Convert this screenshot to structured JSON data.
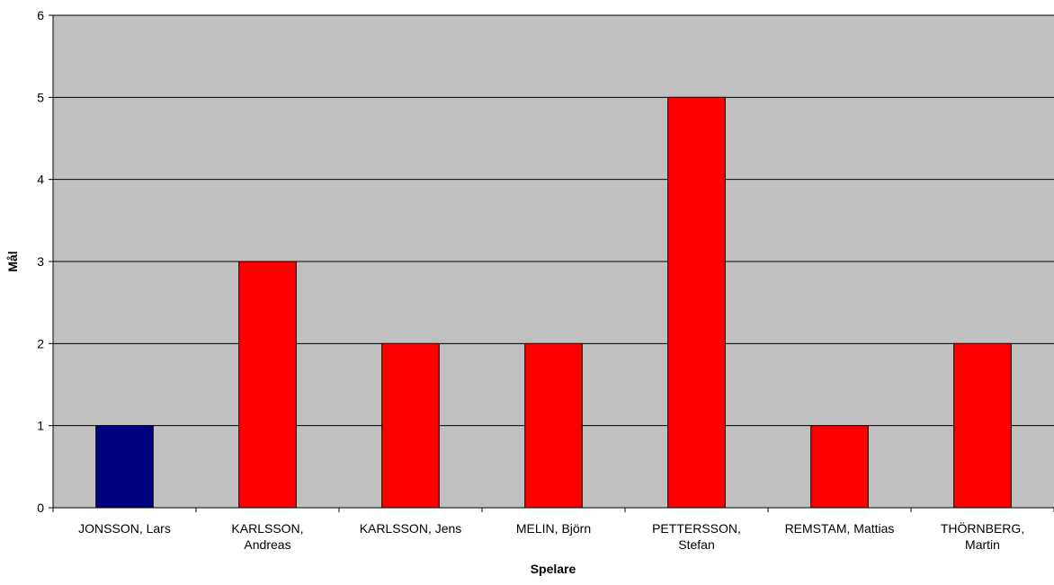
{
  "chart_data": {
    "type": "bar",
    "title": "",
    "xlabel": "Spelare",
    "ylabel": "Mål",
    "ylim": [
      0,
      6
    ],
    "yticks": [
      "0",
      "1",
      "2",
      "3",
      "4",
      "5",
      "6"
    ],
    "grid": true,
    "categories": [
      [
        "JONSSON, Lars"
      ],
      [
        "KARLSSON,",
        "Andreas"
      ],
      [
        "KARLSSON, Jens"
      ],
      [
        "MELIN, Björn"
      ],
      [
        "PETTERSSON,",
        "Stefan"
      ],
      [
        "REMSTAM, Mattias"
      ],
      [
        "THÖRNBERG,",
        "Martin"
      ]
    ],
    "values": [
      1,
      3,
      2,
      2,
      5,
      1,
      2
    ],
    "bar_colors": [
      "#000080",
      "#ff0000",
      "#ff0000",
      "#ff0000",
      "#ff0000",
      "#ff0000",
      "#ff0000"
    ],
    "plot_background": "#c0c0c0"
  }
}
